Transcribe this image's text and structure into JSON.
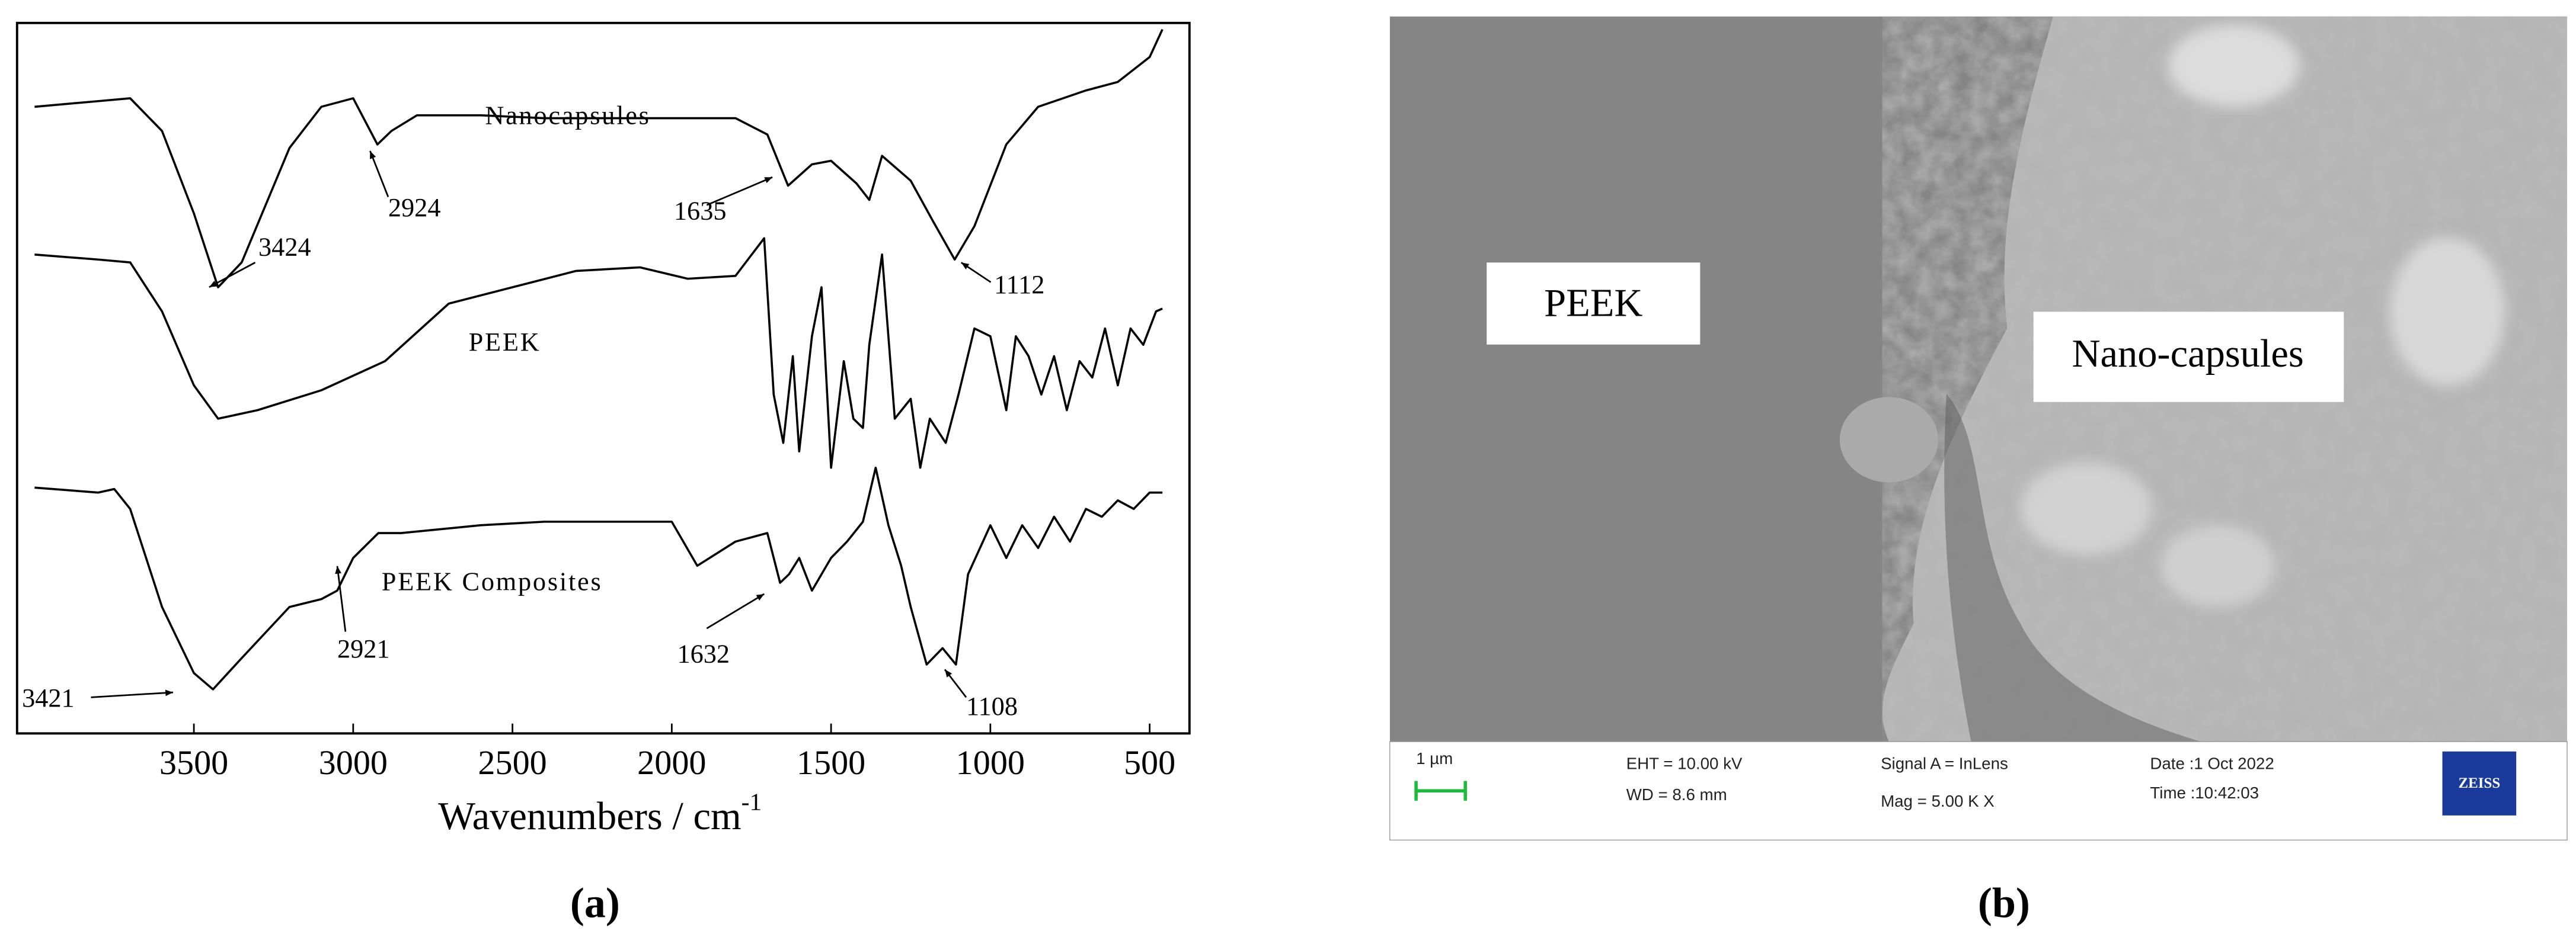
{
  "chart_data": {
    "type": "line",
    "panel_label": "(a)",
    "xlabel": "Wavenumbers / cm",
    "xlabel_superscript": "-1",
    "xlim": [
      4055,
      375
    ],
    "ylim": [
      0,
      100
    ],
    "xticks": [
      3500,
      3000,
      2500,
      2000,
      1500,
      1000,
      500
    ],
    "series": [
      {
        "name": "Nanocapsules",
        "color": "#000000",
        "x": [
          4000,
          3800,
          3700,
          3600,
          3500,
          3424,
          3350,
          3200,
          3100,
          3000,
          2924,
          2880,
          2800,
          2600,
          2400,
          2200,
          2000,
          1800,
          1700,
          1635,
          1560,
          1500,
          1420,
          1380,
          1340,
          1250,
          1180,
          1112,
          1050,
          950,
          850,
          700,
          600,
          500,
          460
        ],
        "values": [
          88.2,
          89,
          89.4,
          84.8,
          73.2,
          62.8,
          66.3,
          82.4,
          88.2,
          89.4,
          82.9,
          84.8,
          87,
          87,
          86.6,
          86.6,
          86.6,
          86.6,
          84.3,
          77.1,
          80.1,
          80.6,
          77.4,
          75.1,
          81.3,
          77.8,
          72.1,
          66.7,
          71.4,
          82.9,
          88.2,
          90.5,
          91.7,
          95.2,
          99.1
        ]
      },
      {
        "name": "PEEK",
        "color": "#000000",
        "x": [
          4000,
          3800,
          3700,
          3600,
          3500,
          3424,
          3300,
          3100,
          2900,
          2700,
          2500,
          2300,
          2100,
          1950,
          1800,
          1710,
          1680,
          1650,
          1620,
          1600,
          1560,
          1530,
          1500,
          1460,
          1430,
          1400,
          1380,
          1340,
          1300,
          1250,
          1220,
          1190,
          1140,
          1100,
          1050,
          1000,
          950,
          920,
          880,
          840,
          800,
          760,
          720,
          680,
          640,
          600,
          560,
          520,
          480,
          460
        ],
        "values": [
          67.4,
          66.7,
          66.3,
          59.4,
          49,
          44.3,
          45.5,
          48.3,
          52.4,
          60.5,
          62.8,
          65.1,
          65.6,
          64,
          64.4,
          69.7,
          47.7,
          40.9,
          53.1,
          39.7,
          55.9,
          62.8,
          37.4,
          52.4,
          44.3,
          43,
          54.7,
          67.4,
          44.3,
          47.1,
          37.4,
          44.3,
          40.9,
          47.7,
          57,
          55.9,
          45.5,
          55.9,
          53.1,
          47.7,
          53.1,
          45.5,
          52.4,
          50.1,
          57,
          49,
          57,
          54.7,
          59.4,
          59.8
        ]
      },
      {
        "name": "PEEK Composites",
        "color": "#000000",
        "x": [
          4000,
          3800,
          3750,
          3700,
          3600,
          3500,
          3440,
          3350,
          3200,
          3100,
          3050,
          3000,
          2921,
          2850,
          2600,
          2400,
          2200,
          2000,
          1920,
          1800,
          1700,
          1660,
          1632,
          1600,
          1560,
          1500,
          1450,
          1400,
          1360,
          1320,
          1280,
          1250,
          1200,
          1150,
          1108,
          1070,
          1000,
          950,
          900,
          850,
          800,
          750,
          700,
          650,
          600,
          550,
          500,
          460
        ],
        "values": [
          34.6,
          33.9,
          34.4,
          31.6,
          17.8,
          8.5,
          6.2,
          10.6,
          17.8,
          18.9,
          20.1,
          24.7,
          28.2,
          28.2,
          29.3,
          29.8,
          29.8,
          29.8,
          23.6,
          27,
          28.2,
          21.2,
          22.4,
          24.7,
          20.1,
          24.7,
          27,
          29.8,
          37.4,
          29.3,
          23.6,
          17.8,
          9.7,
          12,
          9.7,
          22.4,
          29.3,
          24.7,
          29.3,
          26.1,
          30.5,
          27,
          31.6,
          30.5,
          32.8,
          31.6,
          33.9,
          33.9
        ]
      }
    ],
    "annotations": [
      "3424",
      "2924",
      "1635",
      "1112",
      "2921",
      "1632",
      "3421",
      "1108"
    ]
  },
  "panel_b": {
    "label": "(b)",
    "region_labels": [
      "PEEK",
      "Nano-capsules"
    ],
    "scale_bar": "1 µm",
    "info": [
      "EHT = 10.00 kV",
      "WD = 8.6 mm",
      "Signal A = InLens",
      "Mag =    5.00 K X",
      "Date :1 Oct 2022",
      "Time :10:42:03"
    ],
    "logo": "ZEISS"
  }
}
